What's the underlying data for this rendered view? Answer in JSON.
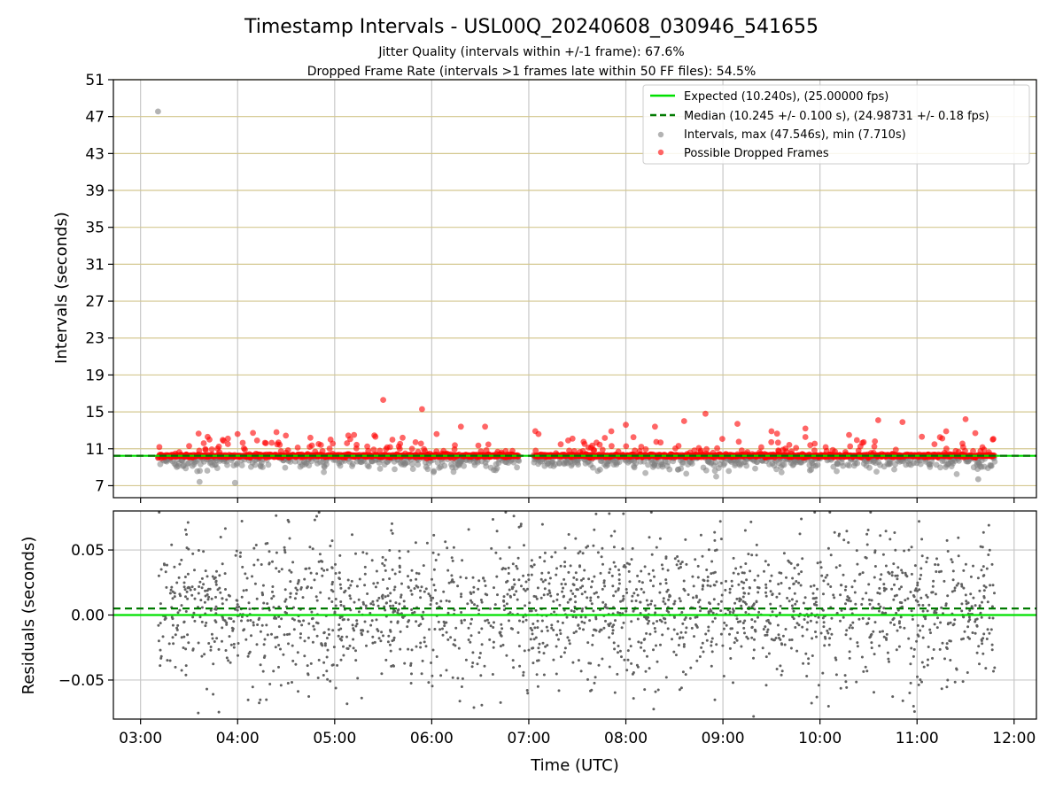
{
  "chart_data": [
    {
      "type": "scatter",
      "title": "Timestamp Intervals - USL00Q_20240608_030946_541655",
      "subtitle_lines": [
        "Jitter Quality (intervals within +/-1 frame): 67.6%",
        "Dropped Frame Rate (intervals >1 frames late within 50 FF files): 54.5%"
      ],
      "xlabel": "",
      "ylabel": "Intervals (seconds)",
      "x_unit": "hours (UTC)",
      "xlim": [
        2.72,
        12.23
      ],
      "ylim": [
        5.7,
        51
      ],
      "yticks": [
        7,
        11,
        15,
        19,
        23,
        27,
        31,
        35,
        39,
        43,
        47,
        51
      ],
      "ytick_labels": [
        "7",
        "11",
        "15",
        "19",
        "23",
        "27",
        "31",
        "35",
        "39",
        "43",
        "47",
        "51"
      ],
      "hgrid_color": "#d4c890",
      "vgrid": true,
      "legend_position": "top-right",
      "legend": [
        "Expected (10.240s), (25.00000 fps)",
        "Median (10.245 +/- 0.100 s), (24.98731 +/- 0.18 fps)",
        "Intervals, max (47.546s), min (7.710s)",
        "Possible Dropped Frames"
      ],
      "expected_interval": 10.24,
      "median_interval": 10.245,
      "colors": {
        "expected": "#00e000",
        "median": "#007a00",
        "intervals": "#808080",
        "dropped": "#ff0000"
      },
      "interval_outliers": [
        [
          3.18,
          47.55
        ],
        [
          11.63,
          7.71
        ]
      ],
      "dropped_frame_peaks": [
        [
          3.5,
          11.3
        ],
        [
          3.9,
          12.1
        ],
        [
          4.0,
          12.6
        ],
        [
          4.2,
          11.9
        ],
        [
          4.4,
          12.8
        ],
        [
          4.75,
          12.2
        ],
        [
          5.2,
          12.5
        ],
        [
          5.42,
          12.3
        ],
        [
          5.5,
          16.3
        ],
        [
          5.7,
          12.2
        ],
        [
          5.9,
          15.3
        ],
        [
          6.05,
          12.6
        ],
        [
          6.3,
          13.4
        ],
        [
          6.55,
          13.4
        ],
        [
          7.1,
          12.6
        ],
        [
          7.45,
          12.1
        ],
        [
          7.85,
          12.9
        ],
        [
          8.0,
          13.6
        ],
        [
          8.3,
          13.4
        ],
        [
          8.6,
          14.0
        ],
        [
          8.82,
          14.8
        ],
        [
          9.15,
          13.7
        ],
        [
          9.5,
          12.9
        ],
        [
          9.85,
          13.2
        ],
        [
          10.3,
          12.5
        ],
        [
          10.6,
          14.1
        ],
        [
          10.85,
          13.9
        ],
        [
          11.05,
          12.3
        ],
        [
          11.3,
          12.9
        ],
        [
          11.5,
          14.2
        ],
        [
          11.6,
          12.7
        ],
        [
          11.78,
          12.0
        ]
      ],
      "gap_hours": [
        [
          6.9,
          7.05
        ]
      ],
      "time_range": [
        3.18,
        11.8
      ]
    },
    {
      "type": "scatter",
      "title": "",
      "xlabel": "Time (UTC)",
      "ylabel": "Residuals (seconds)",
      "xlim": [
        2.72,
        12.23
      ],
      "ylim": [
        -0.08,
        0.08
      ],
      "yticks": [
        -0.05,
        0.0,
        0.05
      ],
      "ytick_labels": [
        "−0.05",
        "0.00",
        "0.05"
      ],
      "xticks": [
        3,
        4,
        5,
        6,
        7,
        8,
        9,
        10,
        11,
        12
      ],
      "xtick_labels": [
        "03:00",
        "04:00",
        "05:00",
        "06:00",
        "07:00",
        "08:00",
        "09:00",
        "10:00",
        "11:00",
        "12:00"
      ],
      "grid": true,
      "expected_residual": 0.0,
      "median_residual": 0.005,
      "residual_spread": [
        -0.08,
        0.08
      ],
      "colors": {
        "expected": "#00e000",
        "median": "#007a00",
        "points": "#606060"
      }
    }
  ]
}
